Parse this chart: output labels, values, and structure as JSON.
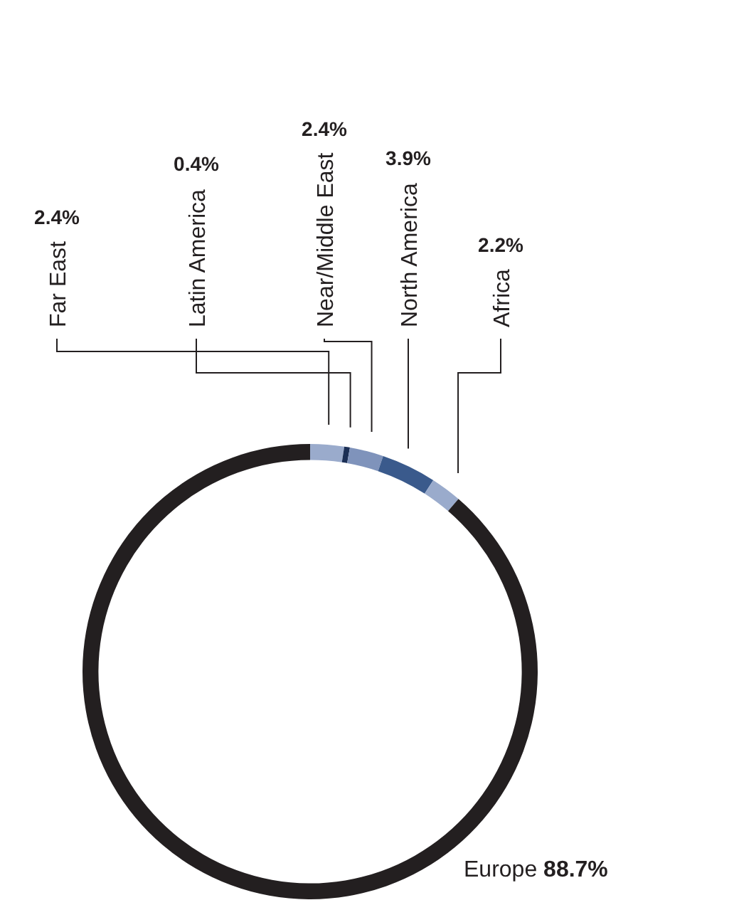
{
  "chart_data": {
    "type": "donut",
    "categories": [
      "Far East",
      "Latin America",
      "Near/Middle East",
      "North America",
      "Africa",
      "Europe"
    ],
    "values": [
      2.4,
      0.4,
      2.4,
      3.9,
      2.2,
      88.7
    ],
    "colors": [
      "#9aabcc",
      "#1b2f55",
      "#7f93bb",
      "#3a5a8c",
      "#9aabcc",
      "#231f20"
    ],
    "value_labels": [
      "2.4%",
      "0.4%",
      "2.4%",
      "3.9%",
      "2.2%",
      "88.7%"
    ],
    "legend": false
  }
}
